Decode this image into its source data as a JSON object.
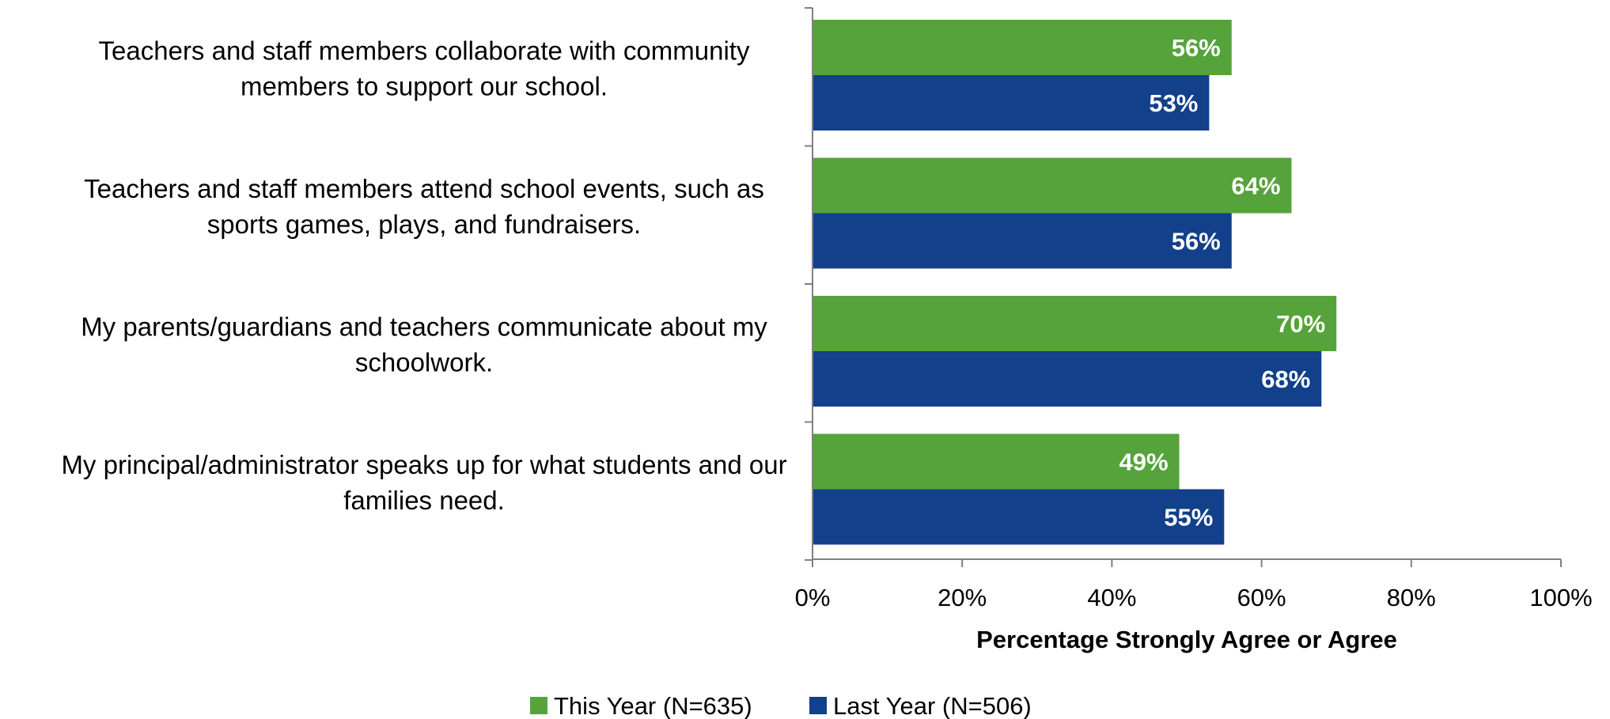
{
  "chart_data": {
    "type": "bar",
    "orientation": "horizontal",
    "categories": [
      "Teachers and staff members collaborate with community members to support our school.",
      "Teachers and staff members attend school events, such as sports games, plays, and fundraisers.",
      "My parents/guardians and teachers communicate about my schoolwork.",
      "My principal/administrator speaks up for what students and our families need."
    ],
    "category_lines": [
      [
        "Teachers and staff members collaborate with community",
        "members to support our school."
      ],
      [
        "Teachers and staff members attend school events, such as",
        "sports games, plays, and fundraisers."
      ],
      [
        "My parents/guardians and teachers communicate about my",
        "schoolwork."
      ],
      [
        "My principal/administrator speaks up for what students and our",
        "families need."
      ]
    ],
    "series": [
      {
        "name": "This Year (N=635)",
        "color": "#55A33A",
        "values": [
          56,
          64,
          70,
          49
        ],
        "labels": [
          "56%",
          "64%",
          "70%",
          "49%"
        ]
      },
      {
        "name": "Last Year (N=506)",
        "color": "#12408B",
        "values": [
          53,
          56,
          68,
          55
        ],
        "labels": [
          "53%",
          "56%",
          "68%",
          "55%"
        ]
      }
    ],
    "xlabel": "Percentage Strongly Agree or Agree",
    "ylabel": "",
    "xlim": [
      0,
      100
    ],
    "xticks": [
      0,
      20,
      40,
      60,
      80,
      100
    ],
    "xtick_labels": [
      "0%",
      "20%",
      "40%",
      "60%",
      "80%",
      "100%"
    ],
    "grid": false,
    "legend_position": "bottom-center"
  }
}
